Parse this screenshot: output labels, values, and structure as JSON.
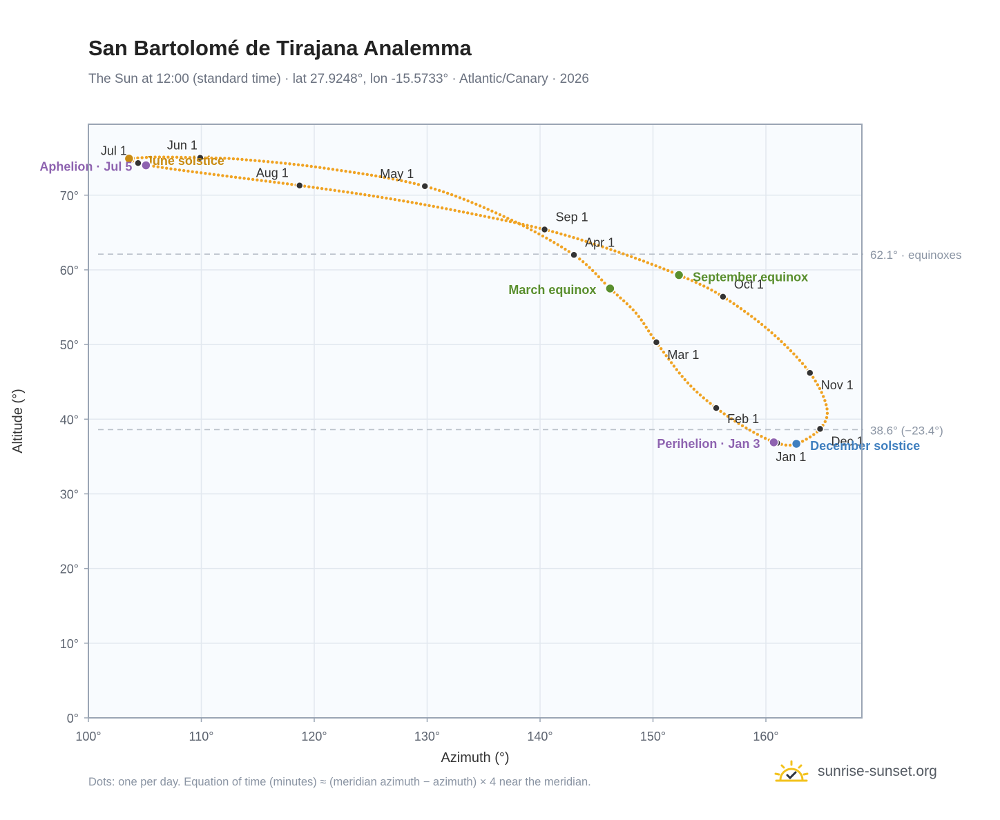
{
  "title": "San Bartolomé de Tirajana Analemma",
  "subtitle": "The Sun at 12:00 (standard time) · lat 27.9248°, lon -15.5733° · Atlantic/Canary · 2026",
  "footnote": "Dots: one per day. Equation of time (minutes) ≈ (meridian azimuth − azimuth) × 4 near the meridian.",
  "brand": {
    "name": "sunrise-sunset.org",
    "icon": "sun-check-icon"
  },
  "colors": {
    "curve": "#f0a323",
    "markers": "#333333",
    "equinox": "#5a8f2e",
    "june_solstice": "#c98b12",
    "december_solstice": "#3f7fbf",
    "apsides": "#8e63b0",
    "reference_line": "#b9c0c9",
    "plot_bg": "#f8fbfe",
    "grid": "#e2e8ef",
    "frame": "#9aa5b4"
  },
  "chart_data": {
    "type": "scatter",
    "xlabel": "Azimuth (°)",
    "ylabel": "Altitude (°)",
    "xlim": [
      100,
      168.5
    ],
    "ylim": [
      0,
      79.5
    ],
    "x_ticks": [
      {
        "value": 100,
        "label": "100°"
      },
      {
        "value": 110,
        "label": "110°"
      },
      {
        "value": 120,
        "label": "120°"
      },
      {
        "value": 130,
        "label": "130°"
      },
      {
        "value": 140,
        "label": "140°"
      },
      {
        "value": 150,
        "label": "150°"
      },
      {
        "value": 160,
        "label": "160°"
      }
    ],
    "y_ticks": [
      {
        "value": 0,
        "label": "0°"
      },
      {
        "value": 10,
        "label": "10°"
      },
      {
        "value": 20,
        "label": "20°"
      },
      {
        "value": 30,
        "label": "30°"
      },
      {
        "value": 40,
        "label": "40°"
      },
      {
        "value": 50,
        "label": "50°"
      },
      {
        "value": 60,
        "label": "60°"
      },
      {
        "value": 70,
        "label": "70°"
      }
    ],
    "grid": true,
    "reference_lines": [
      {
        "value": 62.1,
        "label": "62.1° · equinoxes"
      },
      {
        "value": 38.6,
        "label": "38.6° (−23.4°)"
      }
    ],
    "month_markers": [
      {
        "label": "Jan 1",
        "x": 161.0,
        "y": 36.8
      },
      {
        "label": "Feb 1",
        "x": 155.6,
        "y": 41.5
      },
      {
        "label": "Mar 1",
        "x": 150.3,
        "y": 50.3
      },
      {
        "label": "Apr 1",
        "x": 143.0,
        "y": 62.0
      },
      {
        "label": "May 1",
        "x": 129.8,
        "y": 71.2
      },
      {
        "label": "Jun 1",
        "x": 109.9,
        "y": 75.0
      },
      {
        "label": "Jul 1",
        "x": 104.4,
        "y": 74.3
      },
      {
        "label": "Aug 1",
        "x": 118.7,
        "y": 71.3
      },
      {
        "label": "Sep 1",
        "x": 140.4,
        "y": 65.4
      },
      {
        "label": "Oct 1",
        "x": 156.2,
        "y": 56.4
      },
      {
        "label": "Nov 1",
        "x": 163.9,
        "y": 46.2
      },
      {
        "label": "Dec 1",
        "x": 164.8,
        "y": 38.7
      }
    ],
    "events": [
      {
        "label": "March equinox",
        "x": 146.2,
        "y": 57.5,
        "color_key": "equinox"
      },
      {
        "label": "June solstice",
        "x": 103.6,
        "y": 74.9,
        "color_key": "june_solstice"
      },
      {
        "label": "September equinox",
        "x": 152.3,
        "y": 59.3,
        "color_key": "equinox"
      },
      {
        "label": "December solstice",
        "x": 162.7,
        "y": 36.7,
        "color_key": "december_solstice"
      },
      {
        "label": "Perihelion · Jan 3",
        "x": 160.7,
        "y": 36.9,
        "color_key": "apsides"
      },
      {
        "label": "Aphelion · Jul 5",
        "x": 105.1,
        "y": 74.0,
        "color_key": "apsides"
      }
    ],
    "series": [
      {
        "dot_style": "one dot per day",
        "points": [
          {
            "x": 103.6,
            "y": 74.9
          },
          {
            "x": 104.4,
            "y": 74.3
          },
          {
            "x": 107.0,
            "y": 73.6
          },
          {
            "x": 112.0,
            "y": 72.6
          },
          {
            "x": 118.7,
            "y": 71.3
          },
          {
            "x": 126.0,
            "y": 69.7
          },
          {
            "x": 133.0,
            "y": 67.8
          },
          {
            "x": 140.4,
            "y": 65.4
          },
          {
            "x": 146.5,
            "y": 62.6
          },
          {
            "x": 152.3,
            "y": 59.3
          },
          {
            "x": 156.2,
            "y": 56.4
          },
          {
            "x": 160.5,
            "y": 51.6
          },
          {
            "x": 163.9,
            "y": 46.2
          },
          {
            "x": 165.4,
            "y": 41.5
          },
          {
            "x": 164.8,
            "y": 38.7
          },
          {
            "x": 162.7,
            "y": 36.7
          },
          {
            "x": 161.0,
            "y": 36.8
          },
          {
            "x": 158.5,
            "y": 38.6
          },
          {
            "x": 155.6,
            "y": 41.5
          },
          {
            "x": 153.0,
            "y": 45.0
          },
          {
            "x": 150.3,
            "y": 50.3
          },
          {
            "x": 148.5,
            "y": 54.2
          },
          {
            "x": 146.2,
            "y": 57.5
          },
          {
            "x": 143.0,
            "y": 62.0
          },
          {
            "x": 137.0,
            "y": 67.0
          },
          {
            "x": 129.8,
            "y": 71.2
          },
          {
            "x": 121.0,
            "y": 73.6
          },
          {
            "x": 113.5,
            "y": 74.8
          },
          {
            "x": 109.9,
            "y": 75.0
          },
          {
            "x": 106.0,
            "y": 75.1
          },
          {
            "x": 103.6,
            "y": 74.9
          }
        ]
      }
    ]
  }
}
